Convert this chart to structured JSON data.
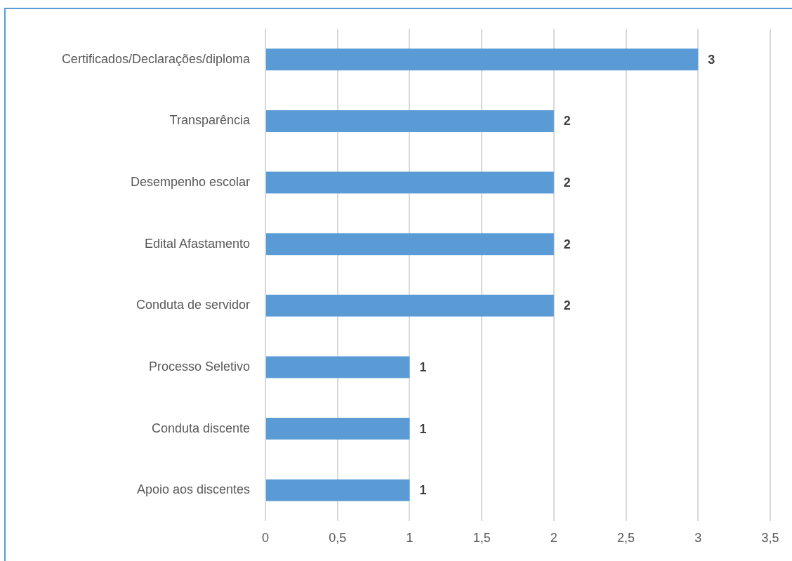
{
  "chart_data": {
    "type": "bar",
    "orientation": "horizontal",
    "categories": [
      "Certificados/Declarações/diploma",
      "Transparência",
      "Desempenho escolar",
      "Edital Afastamento",
      "Conduta de servidor",
      "Processo Seletivo",
      "Conduta discente",
      "Apoio aos discentes"
    ],
    "values": [
      3,
      2,
      2,
      2,
      2,
      1,
      1,
      1
    ],
    "color": "#5b9bd5",
    "xlim": [
      0,
      3.5
    ],
    "xticks": [
      0,
      {
        "value": 0.5,
        "label": "0,5"
      },
      1,
      {
        "value": 1.5,
        "label": "1,5"
      },
      2,
      {
        "value": 2.5,
        "label": "2,5"
      },
      3,
      {
        "value": 3.5,
        "label": "3,5"
      }
    ],
    "grid": "x",
    "data_labels": true
  }
}
